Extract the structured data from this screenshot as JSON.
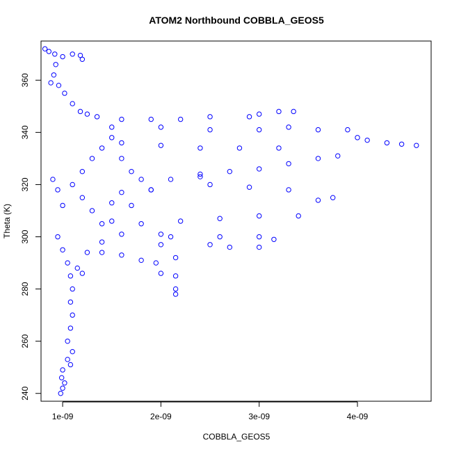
{
  "chart_data": {
    "type": "scatter",
    "title": "ATOM2 Northbound COBBLA_GEOS5",
    "xlabel": "COBBLA_GEOS5",
    "ylabel": "Theta (K)",
    "xlim": [
      7.8e-10,
      4.75e-09
    ],
    "ylim": [
      237,
      375
    ],
    "x_ticks": [
      1e-09,
      2e-09,
      3e-09,
      4e-09
    ],
    "x_tick_labels": [
      "1e-09",
      "2e-09",
      "3e-09",
      "4e-09"
    ],
    "y_ticks": [
      240,
      260,
      280,
      300,
      320,
      340,
      360
    ],
    "y_tick_labels": [
      "240",
      "260",
      "280",
      "300",
      "320",
      "340",
      "360"
    ],
    "grid": false,
    "legend": "none",
    "marker": "open-circle",
    "color": "#0000ff",
    "series": [
      {
        "values": [
          [
            8.2e-10,
            372
          ],
          [
            8.6e-10,
            371
          ],
          [
            9.2e-10,
            370
          ],
          [
            1e-09,
            369
          ],
          [
            1.1e-09,
            370
          ],
          [
            1.18e-09,
            369.5
          ],
          [
            1.2e-09,
            368
          ],
          [
            9.3e-10,
            366
          ],
          [
            9.1e-10,
            362
          ],
          [
            8.8e-10,
            359
          ],
          [
            9.6e-10,
            358
          ],
          [
            1.02e-09,
            355
          ],
          [
            1.1e-09,
            351
          ],
          [
            1.18e-09,
            348
          ],
          [
            1.25e-09,
            347
          ],
          [
            1.35e-09,
            346
          ],
          [
            1.6e-09,
            345
          ],
          [
            1.9e-09,
            345
          ],
          [
            2.2e-09,
            345
          ],
          [
            2.5e-09,
            346
          ],
          [
            2.9e-09,
            346
          ],
          [
            3e-09,
            347
          ],
          [
            3.2e-09,
            348
          ],
          [
            3.35e-09,
            348
          ],
          [
            1.5e-09,
            342
          ],
          [
            2e-09,
            342
          ],
          [
            2.5e-09,
            341
          ],
          [
            3e-09,
            341
          ],
          [
            3.3e-09,
            342
          ],
          [
            3.6e-09,
            341
          ],
          [
            3.9e-09,
            341
          ],
          [
            4e-09,
            338
          ],
          [
            4.1e-09,
            337
          ],
          [
            4.3e-09,
            336
          ],
          [
            4.45e-09,
            335.5
          ],
          [
            4.6e-09,
            335
          ],
          [
            3.2e-09,
            334
          ],
          [
            2.8e-09,
            334
          ],
          [
            2.4e-09,
            334
          ],
          [
            2e-09,
            335
          ],
          [
            1.6e-09,
            336
          ],
          [
            2.4e-09,
            323
          ],
          [
            2.7e-09,
            325
          ],
          [
            3e-09,
            326
          ],
          [
            3.3e-09,
            328
          ],
          [
            3.6e-09,
            330
          ],
          [
            3.8e-09,
            331
          ],
          [
            1.9e-09,
            318
          ],
          [
            2.1e-09,
            322
          ],
          [
            2.4e-09,
            324
          ],
          [
            2.5e-09,
            320
          ],
          [
            2.9e-09,
            319
          ],
          [
            3.3e-09,
            318
          ],
          [
            3.6e-09,
            314
          ],
          [
            3.75e-09,
            315
          ],
          [
            3.4e-09,
            308
          ],
          [
            3e-09,
            308
          ],
          [
            2.6e-09,
            307
          ],
          [
            2.2e-09,
            306
          ],
          [
            1.8e-09,
            305
          ],
          [
            1.5e-09,
            306
          ],
          [
            1.6e-09,
            301
          ],
          [
            2e-09,
            301
          ],
          [
            2.6e-09,
            300
          ],
          [
            3e-09,
            300
          ],
          [
            3.15e-09,
            299
          ],
          [
            2.5e-09,
            297
          ],
          [
            2.7e-09,
            296
          ],
          [
            3e-09,
            296
          ],
          [
            1.4e-09,
            298
          ],
          [
            1.6e-09,
            293
          ],
          [
            1.8e-09,
            291
          ],
          [
            2e-09,
            297
          ],
          [
            2.1e-09,
            300
          ],
          [
            1.95e-09,
            290
          ],
          [
            2e-09,
            286
          ],
          [
            2.15e-09,
            292
          ],
          [
            2.15e-09,
            285
          ],
          [
            2.15e-09,
            280
          ],
          [
            2.15e-09,
            278
          ],
          [
            1.25e-09,
            294
          ],
          [
            1.4e-09,
            294
          ],
          [
            1.15e-09,
            288
          ],
          [
            1.2e-09,
            286
          ],
          [
            9.5e-10,
            300
          ],
          [
            1e-09,
            295
          ],
          [
            1.05e-09,
            290
          ],
          [
            1.08e-09,
            285
          ],
          [
            1.1e-09,
            280
          ],
          [
            1.08e-09,
            275
          ],
          [
            1.1e-09,
            270
          ],
          [
            1.08e-09,
            265
          ],
          [
            1.05e-09,
            260
          ],
          [
            1.1e-09,
            256
          ],
          [
            1.05e-09,
            253
          ],
          [
            1.08e-09,
            251
          ],
          [
            1e-09,
            249
          ],
          [
            9.9e-10,
            246
          ],
          [
            1.02e-09,
            244
          ],
          [
            1e-09,
            242
          ],
          [
            9.8e-10,
            240
          ],
          [
            9e-10,
            322
          ],
          [
            9.5e-10,
            318
          ],
          [
            1e-09,
            312
          ],
          [
            1.1e-09,
            320
          ],
          [
            1.2e-09,
            325
          ],
          [
            1.3e-09,
            330
          ],
          [
            1.4e-09,
            334
          ],
          [
            1.5e-09,
            338
          ],
          [
            1.6e-09,
            330
          ],
          [
            1.7e-09,
            325
          ],
          [
            1.8e-09,
            322
          ],
          [
            1.9e-09,
            318
          ],
          [
            1.2e-09,
            315
          ],
          [
            1.3e-09,
            310
          ],
          [
            1.4e-09,
            305
          ],
          [
            1.5e-09,
            313
          ],
          [
            1.6e-09,
            317
          ],
          [
            1.7e-09,
            312
          ]
        ]
      }
    ]
  }
}
